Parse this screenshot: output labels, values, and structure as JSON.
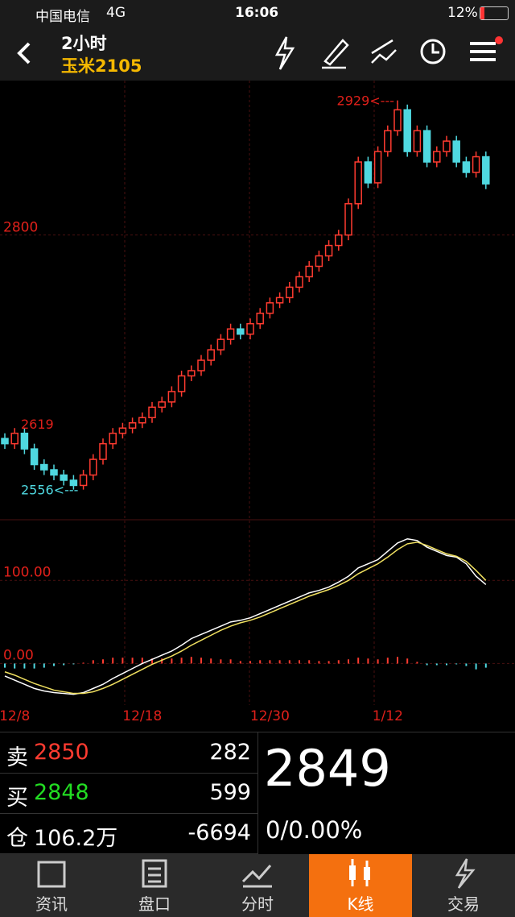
{
  "status_bar": {
    "carrier": "中国电信",
    "network": "4G",
    "time": "16:06",
    "battery": "12%"
  },
  "header": {
    "period": "2小时",
    "symbol": "玉米2105"
  },
  "chart": {
    "type": "candlestick",
    "categories": [
      null,
      "12/8",
      null,
      null,
      null,
      null,
      null,
      null,
      null,
      null,
      null,
      null,
      null,
      null,
      "12/18",
      null,
      null,
      null,
      null,
      null,
      null,
      null,
      null,
      null,
      null,
      null,
      null,
      "12/30",
      null,
      null,
      null,
      null,
      null,
      null,
      null,
      null,
      null,
      null,
      null,
      "1/12",
      null,
      null,
      null,
      null,
      null,
      null,
      null,
      null,
      null,
      null
    ],
    "open": [
      2605,
      2600,
      2610,
      2595,
      2580,
      2575,
      2570,
      2565,
      2560,
      2570,
      2585,
      2600,
      2610,
      2615,
      2620,
      2625,
      2635,
      2640,
      2650,
      2665,
      2670,
      2680,
      2690,
      2700,
      2710,
      2705,
      2715,
      2725,
      2735,
      2740,
      2750,
      2760,
      2770,
      2780,
      2790,
      2800,
      2830,
      2870,
      2850,
      2880,
      2900,
      2920,
      2880,
      2900,
      2870,
      2880,
      2890,
      2870,
      2860,
      2875
    ],
    "high": [
      2610,
      2615,
      2615,
      2600,
      2585,
      2580,
      2575,
      2570,
      2575,
      2590,
      2605,
      2615,
      2620,
      2625,
      2630,
      2640,
      2645,
      2655,
      2670,
      2675,
      2685,
      2695,
      2705,
      2715,
      2715,
      2720,
      2730,
      2740,
      2745,
      2755,
      2765,
      2775,
      2785,
      2795,
      2805,
      2835,
      2875,
      2875,
      2885,
      2905,
      2929,
      2925,
      2905,
      2905,
      2885,
      2895,
      2895,
      2875,
      2880,
      2880
    ],
    "low": [
      2595,
      2595,
      2590,
      2575,
      2570,
      2565,
      2560,
      2556,
      2556,
      2565,
      2580,
      2595,
      2605,
      2610,
      2615,
      2620,
      2630,
      2635,
      2645,
      2660,
      2665,
      2675,
      2685,
      2695,
      2700,
      2700,
      2710,
      2720,
      2730,
      2735,
      2745,
      2755,
      2765,
      2775,
      2785,
      2795,
      2825,
      2845,
      2845,
      2875,
      2895,
      2875,
      2875,
      2865,
      2865,
      2875,
      2865,
      2855,
      2855,
      2844
    ],
    "close": [
      2600,
      2610,
      2595,
      2580,
      2575,
      2570,
      2565,
      2560,
      2570,
      2585,
      2600,
      2610,
      2615,
      2620,
      2625,
      2635,
      2640,
      2650,
      2665,
      2670,
      2680,
      2690,
      2700,
      2710,
      2705,
      2715,
      2725,
      2735,
      2740,
      2750,
      2760,
      2770,
      2780,
      2790,
      2800,
      2830,
      2870,
      2850,
      2880,
      2900,
      2920,
      2880,
      2900,
      2870,
      2880,
      2890,
      2870,
      2860,
      2875,
      2849
    ],
    "up_color": "#ff3b30",
    "down_color": "#4fd8e0",
    "ylim": [
      2531,
      2948
    ],
    "yticks": [
      2800
    ],
    "max_label": "2929<---",
    "min_label": "2556<---",
    "ref_level": 2619
  },
  "indicator": {
    "type": "line",
    "dif": [
      -15,
      -20,
      -25,
      -30,
      -33,
      -35,
      -36,
      -37,
      -35,
      -30,
      -25,
      -18,
      -12,
      -6,
      0,
      5,
      10,
      15,
      22,
      30,
      35,
      40,
      45,
      50,
      52,
      55,
      60,
      65,
      70,
      75,
      80,
      85,
      88,
      92,
      98,
      105,
      115,
      120,
      125,
      135,
      145,
      150,
      148,
      140,
      135,
      130,
      128,
      120,
      105,
      95
    ],
    "dea": [
      -10,
      -14,
      -19,
      -24,
      -28,
      -32,
      -34,
      -36,
      -36,
      -34,
      -30,
      -25,
      -19,
      -13,
      -7,
      -1,
      4,
      9,
      15,
      22,
      28,
      34,
      40,
      45,
      49,
      52,
      56,
      61,
      66,
      71,
      76,
      81,
      85,
      89,
      94,
      100,
      108,
      114,
      120,
      128,
      137,
      144,
      146,
      142,
      137,
      132,
      129,
      123,
      112,
      100
    ],
    "hist": [
      -5,
      -6,
      -6,
      -6,
      -5,
      -3,
      -2,
      -1,
      1,
      4,
      5,
      7,
      7,
      7,
      7,
      6,
      6,
      6,
      7,
      8,
      7,
      6,
      5,
      5,
      3,
      3,
      4,
      4,
      4,
      4,
      4,
      4,
      3,
      3,
      4,
      5,
      7,
      6,
      5,
      7,
      8,
      6,
      2,
      -2,
      -2,
      -2,
      -1,
      -3,
      -7,
      -5
    ],
    "dif_color": "#ffffff",
    "dea_color": "#f0e060",
    "ylim": [
      -50,
      173
    ],
    "yticks": [
      {
        "value": 100,
        "label": "100.00"
      },
      {
        "value": 0,
        "label": "0.00"
      }
    ]
  },
  "quote": {
    "rows": [
      {
        "label": "卖",
        "price": "2850",
        "volume": "282"
      },
      {
        "label": "买",
        "price": "2848",
        "volume": "599"
      },
      {
        "label": "仓",
        "price": "106.2万",
        "volume": "-6694"
      }
    ],
    "last": "2849",
    "change": "0/0.00%"
  },
  "tabs": [
    "资讯",
    "盘口",
    "分时",
    "K线",
    "交易"
  ],
  "active_tab": 3
}
